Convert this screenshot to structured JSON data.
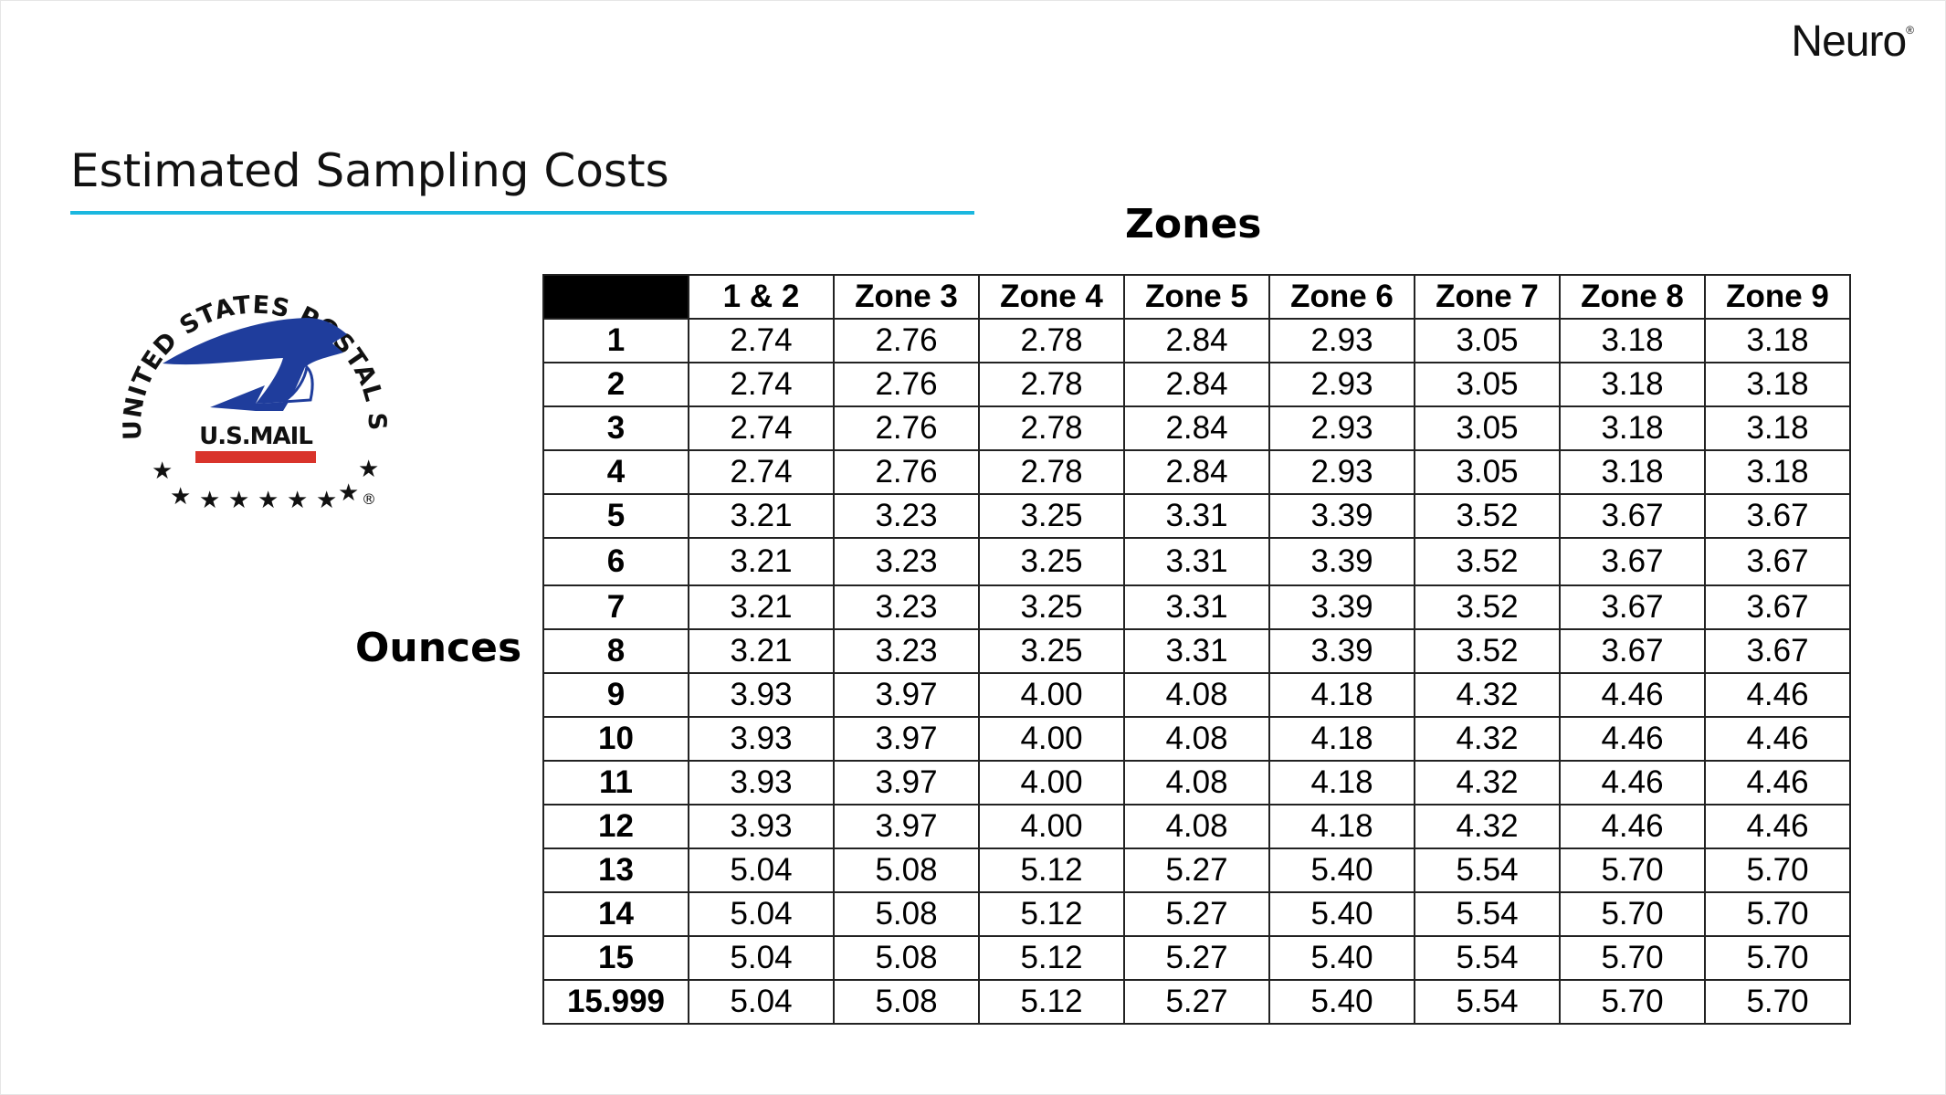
{
  "brand": {
    "name": "Neuro",
    "mark": "®"
  },
  "title": "Estimated Sampling Costs",
  "zones_label": "Zones",
  "ounces_label": "Ounces",
  "logo": {
    "arc_text": "UNITED STATES POSTAL SERVICE",
    "banner_text": "U.S.MAIL",
    "registered": "®",
    "colors": {
      "eagle": "#1f3d9c",
      "banner_red": "#d9342b",
      "text": "#111111"
    }
  },
  "colors": {
    "accent_rule": "#1bb7df",
    "table_border": "#222222",
    "corner_fill": "#000000"
  },
  "table": {
    "columns": [
      "",
      "1 & 2",
      "Zone 3",
      "Zone 4",
      "Zone 5",
      "Zone 6",
      "Zone 7",
      "Zone 8",
      "Zone 9"
    ],
    "rows": [
      [
        "1",
        "2.74",
        "2.76",
        "2.78",
        "2.84",
        "2.93",
        "3.05",
        "3.18",
        "3.18"
      ],
      [
        "2",
        "2.74",
        "2.76",
        "2.78",
        "2.84",
        "2.93",
        "3.05",
        "3.18",
        "3.18"
      ],
      [
        "3",
        "2.74",
        "2.76",
        "2.78",
        "2.84",
        "2.93",
        "3.05",
        "3.18",
        "3.18"
      ],
      [
        "4",
        "2.74",
        "2.76",
        "2.78",
        "2.84",
        "2.93",
        "3.05",
        "3.18",
        "3.18"
      ],
      [
        "5",
        "3.21",
        "3.23",
        "3.25",
        "3.31",
        "3.39",
        "3.52",
        "3.67",
        "3.67"
      ],
      [
        "6",
        "3.21",
        "3.23",
        "3.25",
        "3.31",
        "3.39",
        "3.52",
        "3.67",
        "3.67"
      ],
      [
        "7",
        "3.21",
        "3.23",
        "3.25",
        "3.31",
        "3.39",
        "3.52",
        "3.67",
        "3.67"
      ],
      [
        "8",
        "3.21",
        "3.23",
        "3.25",
        "3.31",
        "3.39",
        "3.52",
        "3.67",
        "3.67"
      ],
      [
        "9",
        "3.93",
        "3.97",
        "4.00",
        "4.08",
        "4.18",
        "4.32",
        "4.46",
        "4.46"
      ],
      [
        "10",
        "3.93",
        "3.97",
        "4.00",
        "4.08",
        "4.18",
        "4.32",
        "4.46",
        "4.46"
      ],
      [
        "11",
        "3.93",
        "3.97",
        "4.00",
        "4.08",
        "4.18",
        "4.32",
        "4.46",
        "4.46"
      ],
      [
        "12",
        "3.93",
        "3.97",
        "4.00",
        "4.08",
        "4.18",
        "4.32",
        "4.46",
        "4.46"
      ],
      [
        "13",
        "5.04",
        "5.08",
        "5.12",
        "5.27",
        "5.40",
        "5.54",
        "5.70",
        "5.70"
      ],
      [
        "14",
        "5.04",
        "5.08",
        "5.12",
        "5.27",
        "5.40",
        "5.54",
        "5.70",
        "5.70"
      ],
      [
        "15",
        "5.04",
        "5.08",
        "5.12",
        "5.27",
        "5.40",
        "5.54",
        "5.70",
        "5.70"
      ],
      [
        "15.999",
        "5.04",
        "5.08",
        "5.12",
        "5.27",
        "5.40",
        "5.54",
        "5.70",
        "5.70"
      ]
    ]
  }
}
